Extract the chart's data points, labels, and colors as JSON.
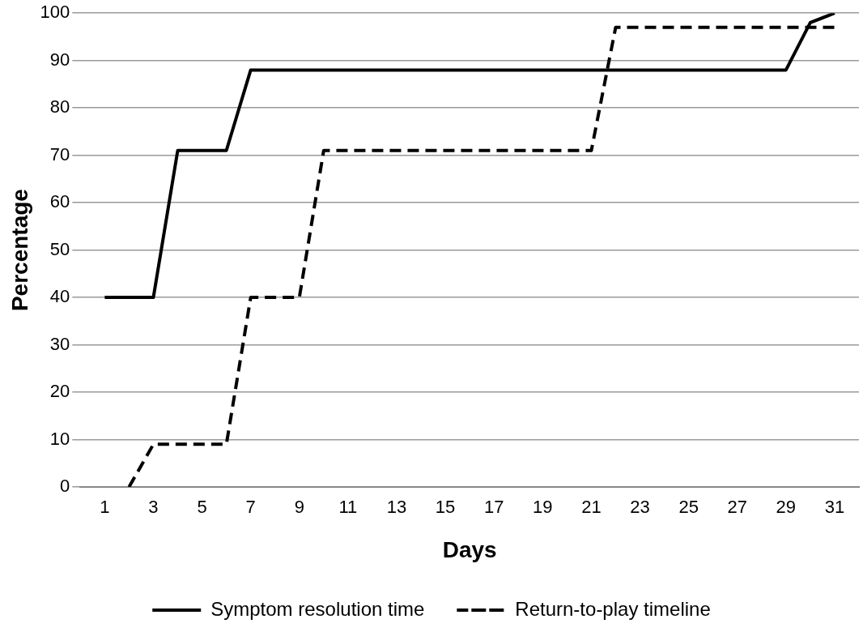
{
  "chart_data": {
    "type": "line",
    "xlabel": "Days",
    "ylabel": "Percentage",
    "x": [
      1,
      2,
      3,
      4,
      5,
      6,
      7,
      8,
      9,
      10,
      11,
      12,
      13,
      14,
      15,
      16,
      17,
      18,
      19,
      20,
      21,
      22,
      23,
      24,
      25,
      26,
      27,
      28,
      29,
      30,
      31
    ],
    "xlim": [
      0,
      32
    ],
    "xticks": [
      1,
      3,
      5,
      7,
      9,
      11,
      13,
      15,
      17,
      19,
      21,
      23,
      25,
      27,
      29,
      31
    ],
    "series": [
      {
        "name": "Symptom resolution time",
        "color": "#000000",
        "line_style": "solid",
        "values": [
          40,
          40,
          40,
          71,
          71,
          71,
          88,
          88,
          88,
          88,
          88,
          88,
          88,
          88,
          88,
          88,
          88,
          88,
          88,
          88,
          88,
          88,
          88,
          88,
          88,
          88,
          88,
          88,
          88,
          98,
          100
        ]
      },
      {
        "name": "Return-to-play timeline",
        "color": "#000000",
        "line_style": "dashed",
        "values": [
          null,
          0,
          9,
          9,
          9,
          9,
          40,
          40,
          40,
          71,
          71,
          71,
          71,
          71,
          71,
          71,
          71,
          71,
          71,
          71,
          71,
          97,
          97,
          97,
          97,
          97,
          97,
          97,
          97,
          97,
          97
        ]
      }
    ],
    "ylim": [
      0,
      100
    ],
    "yticks": [
      0,
      10,
      20,
      30,
      40,
      50,
      60,
      70,
      80,
      90,
      100
    ],
    "grid": "y",
    "legend": "bottom",
    "marker": "none"
  }
}
